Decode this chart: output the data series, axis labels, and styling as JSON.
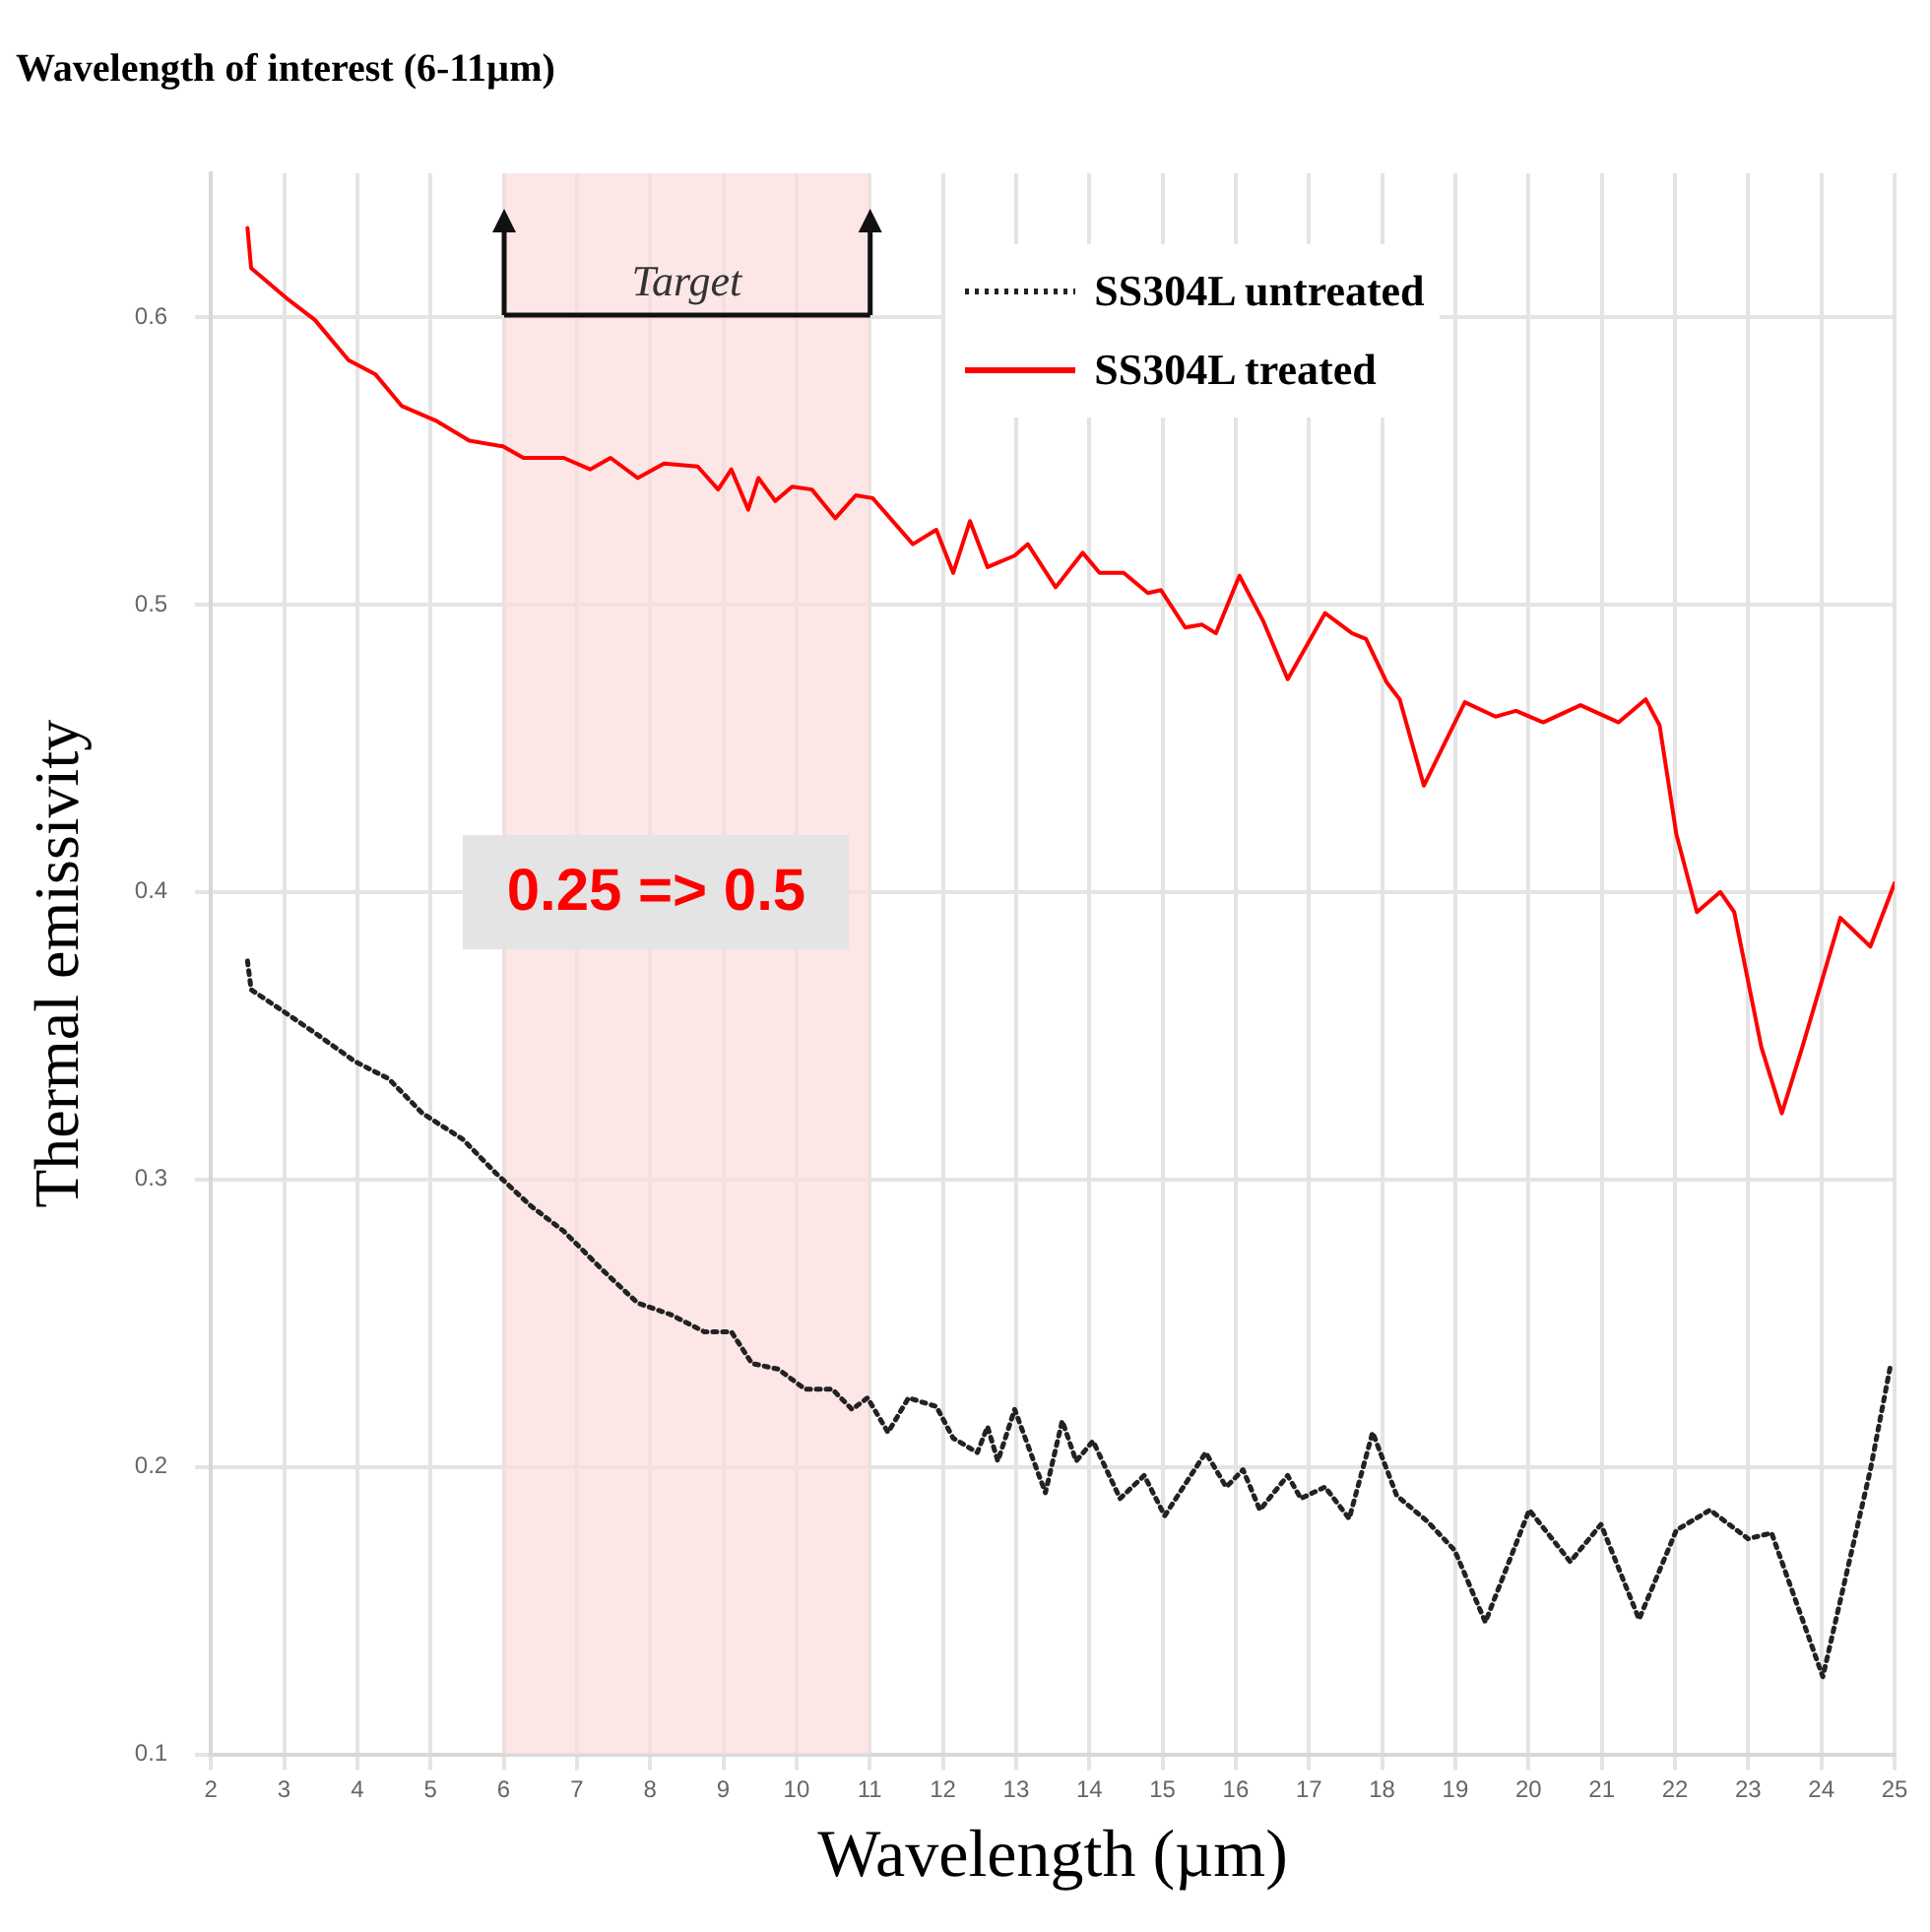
{
  "chart_data": {
    "type": "line",
    "title": "Wavelength of interest (6-11µm)",
    "xlabel": "Wavelength (µm)",
    "ylabel": "Thermal emissivity",
    "xlim": [
      2,
      25
    ],
    "xticks": [
      2,
      3,
      4,
      5,
      6,
      7,
      8,
      9,
      10,
      11,
      12,
      13,
      14,
      15,
      16,
      17,
      18,
      19,
      20,
      21,
      22,
      23,
      24,
      25
    ],
    "ylim": [
      0.1,
      0.65
    ],
    "yticks": [
      0.1,
      0.2,
      0.3,
      0.4,
      0.5,
      0.6
    ],
    "grid": true,
    "legend": "top right",
    "marker": "none",
    "bands": [
      {
        "axis": "x",
        "from": 6,
        "to": 11,
        "label": "Target",
        "color": "#fbdcdc"
      }
    ],
    "annotations": [
      "0.25 => 0.5"
    ],
    "series": [
      {
        "name": "SS304L untreated",
        "color": "#222222",
        "line_style": "dotted",
        "x": [
          2.5,
          2.55,
          2.96,
          3.42,
          3.97,
          4.43,
          4.89,
          5.44,
          5.9,
          6.36,
          6.82,
          7.37,
          7.83,
          8.28,
          8.74,
          9.11,
          9.39,
          9.75,
          10.12,
          10.49,
          10.76,
          10.97,
          11.25,
          11.53,
          11.91,
          12.14,
          12.47,
          12.61,
          12.75,
          12.98,
          13.4,
          13.63,
          13.82,
          14.05,
          14.42,
          14.75,
          15.03,
          15.59,
          15.87,
          16.1,
          16.33,
          16.71,
          16.89,
          17.22,
          17.55,
          17.87,
          18.2,
          18.62,
          18.99,
          19.41,
          20.01,
          20.57,
          20.99,
          21.51,
          22.02,
          22.48,
          23,
          23.32,
          24.02,
          24.67,
          24.95
        ],
        "values": [
          0.376,
          0.366,
          0.359,
          0.351,
          0.341,
          0.335,
          0.323,
          0.314,
          0.302,
          0.291,
          0.282,
          0.268,
          0.257,
          0.253,
          0.247,
          0.247,
          0.236,
          0.234,
          0.227,
          0.227,
          0.22,
          0.224,
          0.212,
          0.224,
          0.221,
          0.21,
          0.205,
          0.214,
          0.202,
          0.22,
          0.191,
          0.216,
          0.202,
          0.209,
          0.189,
          0.197,
          0.183,
          0.205,
          0.193,
          0.199,
          0.185,
          0.197,
          0.189,
          0.193,
          0.182,
          0.212,
          0.19,
          0.181,
          0.171,
          0.146,
          0.185,
          0.167,
          0.18,
          0.147,
          0.178,
          0.185,
          0.175,
          0.177,
          0.127,
          0.199,
          0.236
        ]
      },
      {
        "name": "SS304L treated",
        "color": "#ff0000",
        "line_style": "solid",
        "x": [
          2.5,
          2.55,
          3.06,
          3.42,
          3.88,
          4.25,
          4.61,
          5.07,
          5.53,
          5.99,
          6.27,
          6.82,
          7.18,
          7.46,
          7.83,
          8.19,
          8.65,
          8.93,
          9.11,
          9.34,
          9.48,
          9.71,
          9.94,
          10.21,
          10.53,
          10.81,
          11.04,
          11.59,
          11.91,
          12.14,
          12.37,
          12.61,
          12.98,
          13.16,
          13.54,
          13.91,
          14.14,
          14.47,
          14.8,
          14.98,
          15.31,
          15.54,
          15.73,
          16.05,
          16.38,
          16.71,
          17.22,
          17.59,
          17.78,
          18.06,
          18.24,
          18.57,
          19.13,
          19.55,
          19.83,
          20.2,
          20.71,
          21.23,
          21.6,
          21.79,
          22.02,
          22.3,
          22.62,
          22.81,
          23.18,
          23.46,
          23.74,
          24.26,
          24.67,
          25
        ],
        "values": [
          0.631,
          0.617,
          0.606,
          0.599,
          0.585,
          0.58,
          0.569,
          0.564,
          0.557,
          0.555,
          0.551,
          0.551,
          0.547,
          0.551,
          0.544,
          0.549,
          0.548,
          0.54,
          0.547,
          0.533,
          0.544,
          0.536,
          0.541,
          0.54,
          0.53,
          0.538,
          0.537,
          0.521,
          0.526,
          0.511,
          0.529,
          0.513,
          0.517,
          0.521,
          0.506,
          0.518,
          0.511,
          0.511,
          0.504,
          0.505,
          0.492,
          0.493,
          0.49,
          0.51,
          0.494,
          0.474,
          0.497,
          0.49,
          0.488,
          0.473,
          0.467,
          0.437,
          0.466,
          0.461,
          0.463,
          0.459,
          0.465,
          0.459,
          0.467,
          0.458,
          0.42,
          0.393,
          0.4,
          0.393,
          0.346,
          0.323,
          0.346,
          0.391,
          0.381,
          0.403
        ]
      }
    ]
  }
}
